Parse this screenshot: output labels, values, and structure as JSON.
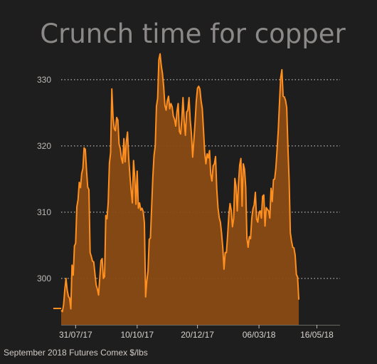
{
  "chart_data": {
    "type": "area",
    "title": "Crunch time for copper",
    "footnote": "September 2018 Futures Comex $/lbs",
    "xlabel": "",
    "ylabel": "",
    "ylim": [
      293,
      334.5
    ],
    "yticks": [
      300,
      310,
      320,
      330
    ],
    "ytick_labels": [
      "300",
      "310",
      "320",
      "330"
    ],
    "xticks": [
      "31/07/17",
      "10/10/17",
      "20/12/17",
      "06/03/18",
      "16/05/18"
    ],
    "xlim": [
      0,
      230
    ],
    "xtick_positions": [
      12,
      63,
      113,
      164,
      212
    ],
    "grid": true,
    "legend": "none",
    "colors": {
      "line": "#ff8f1f",
      "fill": "#8a4b14",
      "background": "#1f1e1e",
      "grid": "#d9d6d2"
    },
    "series": [
      {
        "values": [
          295.2,
          295.0,
          296.0,
          298.3,
          300.0,
          298.2,
          297.3,
          297.0,
          295.4,
          302.0,
          300.5,
          304.9,
          305.3,
          310.8,
          311.9,
          314.5,
          313.7,
          315.8,
          316.6,
          319.7,
          319.5,
          316.4,
          313.8,
          313.4,
          303.9,
          303.3,
          302.6,
          302.5,
          300.7,
          299.0,
          298.4,
          297.5,
          300.1,
          302.7,
          303.0,
          300.0,
          300.3,
          309.5,
          309.0,
          311.5,
          317.4,
          319.0,
          328.6,
          324.3,
          322.6,
          322.3,
          324.3,
          323.9,
          320.3,
          319.6,
          318.1,
          317.4,
          321.1,
          317.6,
          320.6,
          322.1,
          318.2,
          315.5,
          313.3,
          311.4,
          317.8,
          315.3,
          311.2,
          316.2,
          310.6,
          311.4,
          310.3,
          310.6,
          310.1,
          308.4,
          297.2,
          299.6,
          301.1,
          305.9,
          306.1,
          310.7,
          315.3,
          318.6,
          320.0,
          326.0,
          327.2,
          333.0,
          333.9,
          332.1,
          330.9,
          328.9,
          326.1,
          325.4,
          326.8,
          327.5,
          325.6,
          326.4,
          325.9,
          324.5,
          324.0,
          323.0,
          325.2,
          326.4,
          322.2,
          321.8,
          324.0,
          327.3,
          323.7,
          321.6,
          325.1,
          325.4,
          327.3,
          323.9,
          321.8,
          318.3,
          320.8,
          323.5,
          326.7,
          328.7,
          329.0,
          328.6,
          326.8,
          325.6,
          322.4,
          319.0,
          317.3,
          318.8,
          318.2,
          319.3,
          315.7,
          314.7,
          317.0,
          317.3,
          318.4,
          313.5,
          310.7,
          309.2,
          308.5,
          306.8,
          304.6,
          301.4,
          303.9,
          303.9,
          306.5,
          309.6,
          311.3,
          310.3,
          307.8,
          309.0,
          315.1,
          313.9,
          310.2,
          314.3,
          317.1,
          318.1,
          310.9,
          317.3,
          316.5,
          313.8,
          306.1,
          304.7,
          306.3,
          306.0,
          309.0,
          310.5,
          311.1,
          313.0,
          309.0,
          308.5,
          310.0,
          310.2,
          309.1,
          312.4,
          312.6,
          307.9,
          310.7,
          310.4,
          310.2,
          309.1,
          313.6,
          311.6,
          314.9,
          315.0,
          316.7,
          319.4,
          322.4,
          326.5,
          330.3,
          331.5,
          327.5,
          327.4,
          326.9,
          325.8,
          319.8,
          314.8,
          306.9,
          305.6,
          304.7,
          304.6,
          303.5,
          300.6,
          300.2,
          296.8
        ]
      }
    ]
  }
}
